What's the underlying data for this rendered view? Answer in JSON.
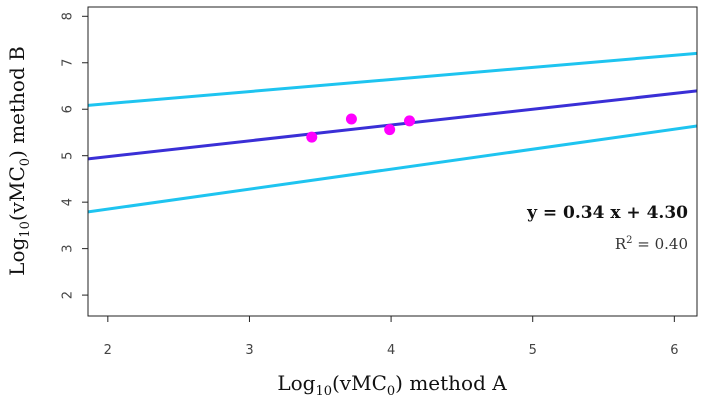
{
  "chart_data": {
    "type": "scatter",
    "xlabel": {
      "pre": "Log",
      "sub1": "10",
      "mid": "(vMC",
      "sub2": "0",
      "post": ") method A"
    },
    "ylabel": {
      "pre": "Log",
      "sub1": "10",
      "mid": "(vMC",
      "sub2": "0",
      "post": ") method B"
    },
    "xlim": [
      1.86,
      6.16
    ],
    "ylim": [
      1.55,
      8.2
    ],
    "xticks": [
      2,
      3,
      4,
      5,
      6
    ],
    "yticks": [
      2,
      3,
      4,
      5,
      6,
      7,
      8
    ],
    "grid": false,
    "points": [
      {
        "x": 3.44,
        "y": 5.4
      },
      {
        "x": 3.72,
        "y": 5.79
      },
      {
        "x": 3.99,
        "y": 5.56
      },
      {
        "x": 4.13,
        "y": 5.75
      }
    ],
    "lines": [
      {
        "role": "fit",
        "slope": 0.34,
        "intercept": 4.3,
        "color": "#3a2fd6"
      },
      {
        "role": "upper-band",
        "slope": 0.26,
        "intercept": 5.6,
        "color": "#1ec4f0"
      },
      {
        "role": "lower-band",
        "slope": 0.43,
        "intercept": 2.99,
        "color": "#1ec4f0"
      }
    ],
    "point_color": "#ff00ff",
    "annotations": {
      "equation": "y = 0.34 x + 4.30",
      "r2_pre": "R",
      "r2_sup": "2",
      "r2_post": " = 0.40"
    }
  }
}
